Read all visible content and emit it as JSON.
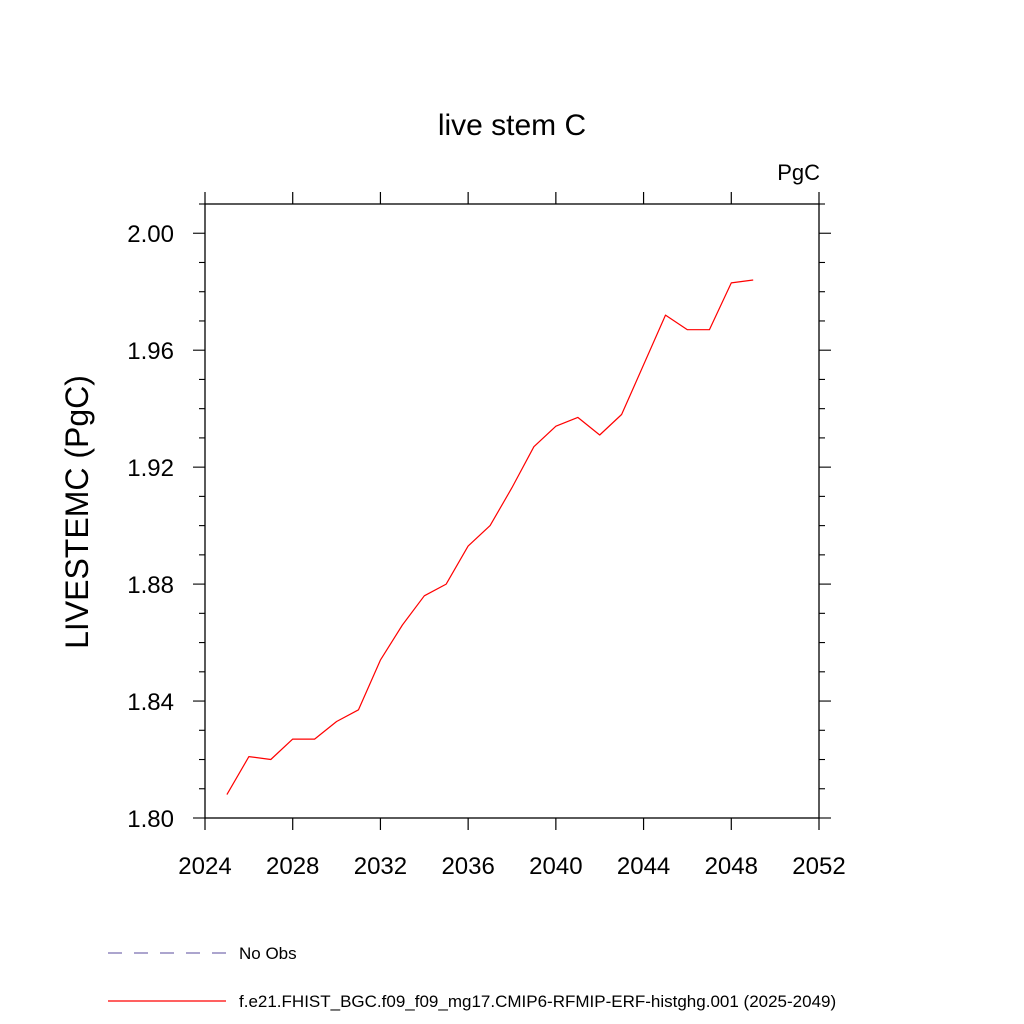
{
  "chart_data": {
    "type": "line",
    "title": "live stem C",
    "units_label": "PgC",
    "ylabel": "LIVESTEMC  (PgC)",
    "xlabel": "",
    "xlim": [
      2024,
      2052
    ],
    "ylim": [
      1.8,
      2.01
    ],
    "x_ticks": [
      2024,
      2028,
      2032,
      2036,
      2040,
      2044,
      2048,
      2052
    ],
    "x_tick_labels": [
      "2024",
      "2028",
      "2032",
      "2036",
      "2040",
      "2044",
      "2048",
      "2052"
    ],
    "y_ticks": [
      1.8,
      1.84,
      1.88,
      1.92,
      1.96,
      2.0
    ],
    "y_tick_labels": [
      "1.80",
      "1.84",
      "1.88",
      "1.92",
      "1.96",
      "2.00"
    ],
    "grid": false,
    "legend_position": "bottom-left, below plot",
    "series": [
      {
        "name": "f.e21.FHIST_BGC.f09_f09_mg17.CMIP6-RFMIP-ERF-histghg.001 (2025-2049)",
        "color": "#ff0000",
        "style": "solid",
        "x": [
          2025,
          2026,
          2027,
          2028,
          2029,
          2030,
          2031,
          2032,
          2033,
          2034,
          2035,
          2036,
          2037,
          2038,
          2039,
          2040,
          2041,
          2042,
          2043,
          2044,
          2045,
          2046,
          2047,
          2048,
          2049
        ],
        "y": [
          1.808,
          1.821,
          1.82,
          1.827,
          1.827,
          1.833,
          1.837,
          1.854,
          1.866,
          1.876,
          1.88,
          1.893,
          1.9,
          1.913,
          1.927,
          1.934,
          1.937,
          1.931,
          1.938,
          1.955,
          1.972,
          1.967,
          1.967,
          1.983,
          1.984
        ]
      }
    ],
    "legend": [
      {
        "label": "No Obs",
        "color": "#7b6fb0",
        "style": "dashed"
      },
      {
        "label": "f.e21.FHIST_BGC.f09_f09_mg17.CMIP6-RFMIP-ERF-histghg.001 (2025-2049)",
        "color": "#ff0000",
        "style": "solid"
      }
    ]
  }
}
